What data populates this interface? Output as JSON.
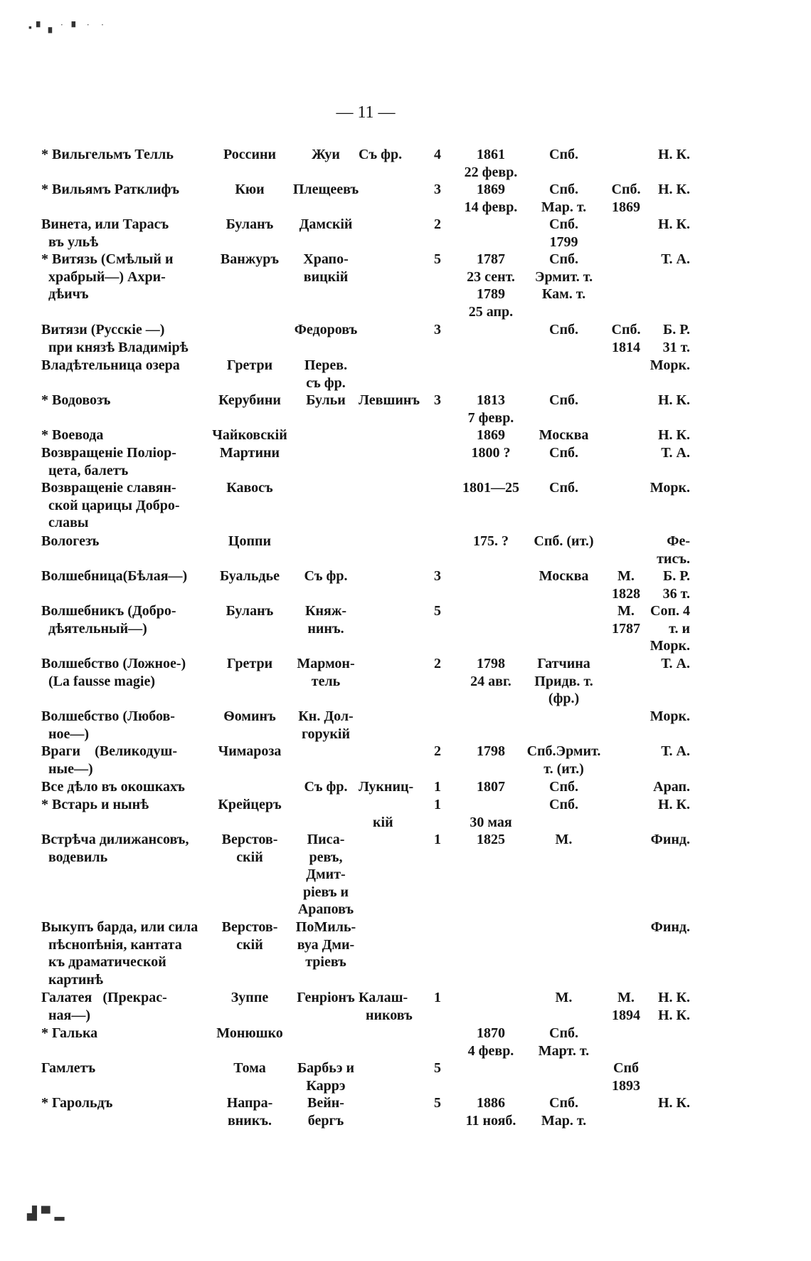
{
  "page_number": "— 11 —",
  "rows": [
    {
      "title": "* Вильгельмъ Телль",
      "composer": "Россини",
      "librettist": "Жуи",
      "translator": "Съ фр.",
      "acts": "4",
      "date": "1861\n22 февр.",
      "place": "Спб.",
      "src_year": "",
      "source": "Н. К."
    },
    {
      "title": "* Вильямъ Ратклифъ",
      "composer": "Кюи",
      "librettist": "Плещеевъ",
      "translator": "",
      "acts": "3",
      "date": "1869\n14 февр.",
      "place": "Спб.\nМар. т.",
      "src_year": "Спб.\n1869",
      "source": "Н. К."
    },
    {
      "title": "Винета, или Тарасъ\n  въ ульѣ",
      "composer": "Буланъ",
      "librettist": "Дамскій",
      "translator": "",
      "acts": "2",
      "date": "",
      "place": "Спб.\n1799",
      "src_year": "",
      "source": "Н. К."
    },
    {
      "title": "* Витязь (Смѣлый и\n  храбрый—) Ахри-\n  дѣичъ",
      "composer": "Ванжуръ",
      "librettist": "Храпо-\nвицкій",
      "translator": "",
      "acts": "5",
      "date": "1787\n23 сент.\n1789\n25 апр.",
      "place": "Спб.\nЭрмит. т.\nКам. т.",
      "src_year": "",
      "source": "Т. А."
    },
    {
      "title": "Витязи (Русскіе —)\n  при князѣ Владимірѣ",
      "composer": "",
      "librettist": "Федоровъ",
      "translator": "",
      "acts": "3",
      "date": "",
      "place": "Спб.",
      "src_year": "Спб.\n1814",
      "source": "Б. Р.\n31 т."
    },
    {
      "title": "Владѣтельница озера",
      "composer": "Гретри",
      "librettist": "Перев.\nсъ фр.",
      "translator": "",
      "acts": "",
      "date": "",
      "place": "",
      "src_year": "",
      "source": "Морк."
    },
    {
      "title": "* Водовозъ",
      "composer": "Керубини",
      "librettist": "Бульи",
      "translator": "Левшинъ",
      "acts": "3",
      "date": "1813\n7 февр.",
      "place": "Спб.",
      "src_year": "",
      "source": "Н. К."
    },
    {
      "title": "* Воевода",
      "composer": "Чайковскій",
      "librettist": "",
      "translator": "",
      "acts": "",
      "date": "1869",
      "place": "Москва",
      "src_year": "",
      "source": "Н. К."
    },
    {
      "title": "Возвращеніе Поліор-\n  цета, балетъ",
      "composer": "Мартини",
      "librettist": "",
      "translator": "",
      "acts": "",
      "date": "1800 ?",
      "place": "Спб.",
      "src_year": "",
      "source": "Т. А."
    },
    {
      "title": "Возвращеніе славян-\n  ской царицы Добро-\n  славы",
      "composer": "Кавосъ",
      "librettist": "",
      "translator": "",
      "acts": "",
      "date": "1801—25",
      "place": "Спб.",
      "src_year": "",
      "source": "Морк."
    },
    {
      "title": "Вологезъ",
      "composer": "Цоппи",
      "librettist": "",
      "translator": "",
      "acts": "",
      "date": "175. ?",
      "place": "Спб. (ит.)",
      "src_year": "",
      "source": "Фе-\nтисъ."
    },
    {
      "title": "Волшебница(Бѣлая—)",
      "composer": "Буальдье",
      "librettist": "Съ фр.",
      "translator": "",
      "acts": "3",
      "date": "",
      "place": "Москва",
      "src_year": "М.\n1828",
      "source": "Б. Р.\n36 т."
    },
    {
      "title": "Волшебникъ (Добро-\n  дѣятельный—)",
      "composer": "Буланъ",
      "librettist": "Княж-\nнинъ.",
      "translator": "",
      "acts": "5",
      "date": "",
      "place": "",
      "src_year": "М.\n1787",
      "source": "Соп. 4\nт. и\nМорк."
    },
    {
      "title": "Волшебство (Ложное-)\n  (La fausse magie)",
      "composer": "Гретри",
      "librettist": "Мармон-\nтель",
      "translator": "",
      "acts": "2",
      "date": "1798\n24 авг.",
      "place": "Гатчина\nПридв. т.\n(фр.)",
      "src_year": "",
      "source": "Т. А."
    },
    {
      "title": "Волшебство (Любов-\n  ное—)",
      "composer": "Ѳоминъ",
      "librettist": "Кн. Дол-\nгорукій",
      "translator": "",
      "acts": "",
      "date": "",
      "place": "",
      "src_year": "",
      "source": "Морк."
    },
    {
      "title": "Враги    (Великодуш-\n  ные—)",
      "composer": "Чимароза",
      "librettist": "",
      "translator": "",
      "acts": "2",
      "date": "1798",
      "place": "Спб.Эрмит.\nт. (ит.)",
      "src_year": "",
      "source": "Т. А."
    },
    {
      "title": "Все дѣло въ окошкахъ",
      "composer": "",
      "librettist": "Съ фр.",
      "translator": "Лукниц-",
      "acts": "1",
      "date": "1807",
      "place": "Спб.",
      "src_year": "",
      "source": "Арап."
    },
    {
      "title": "* Встарь и нынѣ",
      "composer": "Крейцеръ",
      "librettist": "",
      "translator": "\n    кій",
      "acts": "1",
      "date": "\n30 мая",
      "place": "Спб.",
      "src_year": "",
      "source": "Н. К."
    },
    {
      "title": "Встрѣча дилижансовъ,\n  водевиль",
      "composer": "Верстов-\nскій",
      "librettist": "Писа-\nревъ,\nДмит-\nріевъ и\nАраповъ",
      "translator": "",
      "acts": "1",
      "date": "1825",
      "place": "М.",
      "src_year": "",
      "source": "Финд."
    },
    {
      "title": "Выкупъ барда, или сила\n  пѣснопѣнія, кантата\n  къ драматической\n  картинѣ",
      "composer": "Верстов-\nскій",
      "librettist": "ПоМиль-\nвуа Дми-\nтріевъ",
      "translator": "",
      "acts": "",
      "date": "",
      "place": "",
      "src_year": "",
      "source": "Финд."
    },
    {
      "title": "Галатея   (Прекрас-\n  ная—)",
      "composer": "Зуппе",
      "librettist": "Генріонъ",
      "translator": "Калаш-\n  никовъ",
      "acts": "1",
      "date": "",
      "place": "М.",
      "src_year": "М.\n1894",
      "source": "Н. К.\nН. К."
    },
    {
      "title": "* Галька",
      "composer": "Монюшко",
      "librettist": "",
      "translator": "",
      "acts": "",
      "date": "1870\n4 февр.",
      "place": "Спб.\nМарт. т.",
      "src_year": "",
      "source": ""
    },
    {
      "title": "Гамлетъ",
      "composer": "Тома",
      "librettist": "Барбьэ и\nКаррэ",
      "translator": "",
      "acts": "5",
      "date": "",
      "place": "",
      "src_year": "Спб\n1893",
      "source": ""
    },
    {
      "title": "* Гарольдъ",
      "composer": "Напра-\nвникъ.",
      "librettist": "Вейн-\nбергъ",
      "translator": "",
      "acts": "5",
      "date": "1886\n11 нояб.",
      "place": "Спб.\nМар. т.",
      "src_year": "",
      "source": "Н. К."
    }
  ]
}
